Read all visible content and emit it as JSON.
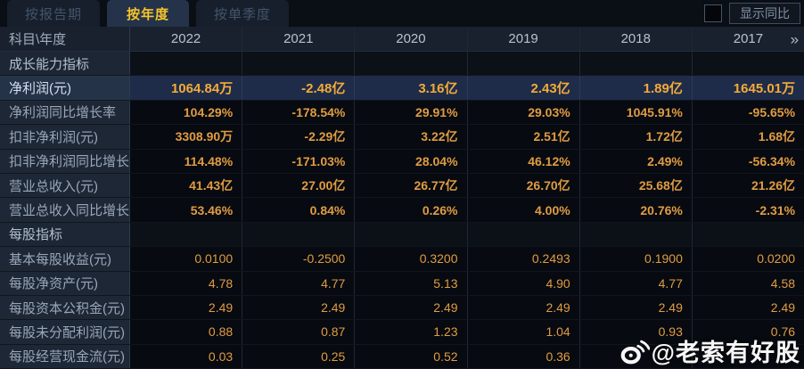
{
  "tabs": [
    {
      "label": "按报告期",
      "active": false
    },
    {
      "label": "按年度",
      "active": true
    },
    {
      "label": "按单季度",
      "active": false
    }
  ],
  "controls": {
    "show_yoy_label": "显示同比",
    "show_yoy_checked": false
  },
  "table": {
    "corner_label": "科目\\年度",
    "years": [
      "2022",
      "2021",
      "2020",
      "2019",
      "2018",
      "2017"
    ],
    "more_years_glyph": "»",
    "rows": [
      {
        "type": "section",
        "label": "成长能力指标"
      },
      {
        "type": "data",
        "label": "净利润(元)",
        "highlight": true,
        "emphasis": true,
        "values": [
          "1064.84万",
          "-2.48亿",
          "3.16亿",
          "2.43亿",
          "1.89亿",
          "1645.01万"
        ]
      },
      {
        "type": "data",
        "label": "净利润同比增长率",
        "emphasis": true,
        "values": [
          "104.29%",
          "-178.54%",
          "29.91%",
          "29.03%",
          "1045.91%",
          "-95.65%"
        ]
      },
      {
        "type": "data",
        "label": "扣非净利润(元)",
        "emphasis": true,
        "values": [
          "3308.90万",
          "-2.29亿",
          "3.22亿",
          "2.51亿",
          "1.72亿",
          "1.68亿"
        ]
      },
      {
        "type": "data",
        "label": "扣非净利润同比增长率",
        "emphasis": true,
        "values": [
          "114.48%",
          "-171.03%",
          "28.04%",
          "46.12%",
          "2.49%",
          "-56.34%"
        ]
      },
      {
        "type": "data",
        "label": "营业总收入(元)",
        "emphasis": true,
        "values": [
          "41.43亿",
          "27.00亿",
          "26.77亿",
          "26.70亿",
          "25.68亿",
          "21.26亿"
        ]
      },
      {
        "type": "data",
        "label": "营业总收入同比增长率",
        "emphasis": true,
        "values": [
          "53.46%",
          "0.84%",
          "0.26%",
          "4.00%",
          "20.76%",
          "-2.31%"
        ]
      },
      {
        "type": "section",
        "label": "每股指标"
      },
      {
        "type": "data",
        "label": "基本每股收益(元)",
        "values": [
          "0.0100",
          "-0.2500",
          "0.3200",
          "0.2493",
          "0.1900",
          "0.0200"
        ]
      },
      {
        "type": "data",
        "label": "每股净资产(元)",
        "values": [
          "4.78",
          "4.77",
          "5.13",
          "4.90",
          "4.77",
          "4.58"
        ]
      },
      {
        "type": "data",
        "label": "每股资本公积金(元)",
        "values": [
          "2.49",
          "2.49",
          "2.49",
          "2.49",
          "2.49",
          "2.49"
        ]
      },
      {
        "type": "data",
        "label": "每股未分配利润(元)",
        "values": [
          "0.88",
          "0.87",
          "1.23",
          "1.04",
          "0.93",
          "0.76"
        ]
      },
      {
        "type": "data",
        "label": "每股经营现金流(元)",
        "values": [
          "0.03",
          "0.25",
          "0.52",
          "0.36",
          "",
          ""
        ]
      }
    ]
  },
  "watermark": {
    "text": "@老索有好股",
    "icon": "weibo-icon"
  },
  "colors": {
    "accent_yellow": "#f5c42c",
    "value_gold": "#e09c42",
    "highlight_value_gold": "#f4ab38",
    "highlight_row_bg": "#1e2c49",
    "label_column_bg": "#1d2735",
    "header_row_bg": "#19212e",
    "data_cell_bg": "#070a10"
  }
}
